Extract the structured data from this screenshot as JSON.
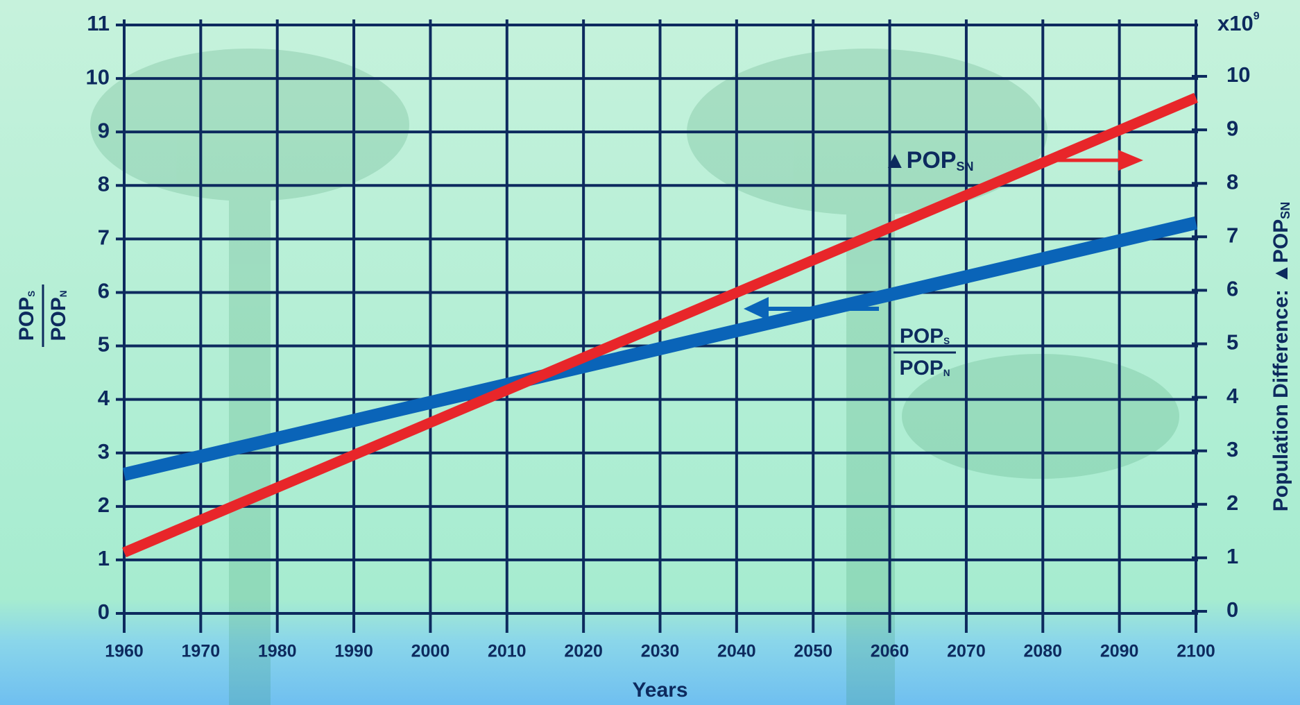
{
  "chart_data": {
    "type": "line",
    "x": [
      1960,
      2100
    ],
    "xlabel": "Years",
    "xlim": [
      1960,
      2100
    ],
    "xticks": [
      1960,
      1970,
      1980,
      1990,
      2000,
      2010,
      2020,
      2030,
      2040,
      2050,
      2060,
      2070,
      2080,
      2090,
      2100
    ],
    "ylim": [
      0,
      11
    ],
    "yticks": [
      0,
      1,
      2,
      3,
      4,
      5,
      6,
      7,
      8,
      9,
      10,
      11
    ],
    "y2lim": [
      0,
      10
    ],
    "y2ticks": [
      0,
      1,
      2,
      3,
      4,
      5,
      6,
      7,
      8,
      9,
      10
    ],
    "y2unit": {
      "base": "x10",
      "sup": "9"
    },
    "ylabel": {
      "num": "POP",
      "num_sub": "S",
      "den": "POP",
      "den_sub": "N"
    },
    "y2label": {
      "text": "Population Difference: ▲POP",
      "sub": "SN"
    },
    "grid": true,
    "series": [
      {
        "color": "#0a64b8",
        "values": [
          2.6,
          7.3
        ]
      },
      {
        "color": "#e8262a",
        "values": [
          1.1,
          9.6
        ],
        "axis": "y2"
      }
    ],
    "annotations": [
      {
        "text": "▲POP",
        "sub": "SN"
      },
      {
        "num": "POP",
        "num_sub": "S",
        "den": "POP",
        "den_sub": "N"
      }
    ]
  }
}
